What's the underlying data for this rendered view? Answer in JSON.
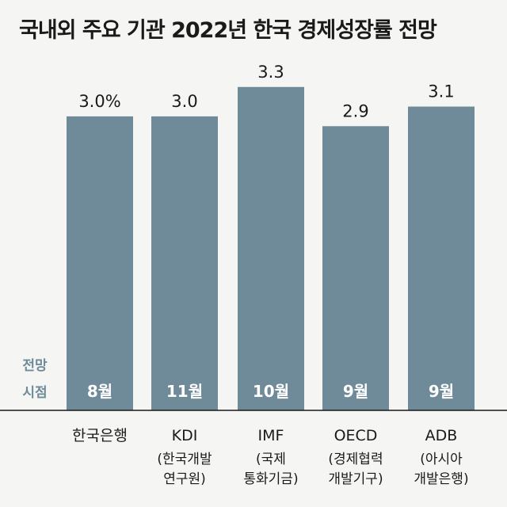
{
  "title": "국내외 주요 기관 2022년 한국 경제성장률 전망",
  "time_caption": [
    "전망",
    "시점"
  ],
  "chart_data": {
    "type": "bar",
    "title": "국내외 주요 기관 2022년 한국 경제성장률 전망",
    "categories": [
      {
        "name": "한국은행",
        "sub": []
      },
      {
        "name": "KDI",
        "sub": [
          "(한국개발",
          "연구원)"
        ]
      },
      {
        "name": "IMF",
        "sub": [
          "(국제",
          "통화기금)"
        ]
      },
      {
        "name": "OECD",
        "sub": [
          "(경제협력",
          "개발기구)"
        ]
      },
      {
        "name": "ADB",
        "sub": [
          "(아시아",
          "개발은행)"
        ]
      }
    ],
    "values": [
      3.0,
      3.0,
      3.3,
      2.9,
      3.1
    ],
    "value_labels": [
      "3.0%",
      "3.0",
      "3.3",
      "2.9",
      "3.1"
    ],
    "forecast_month": [
      "8월",
      "11월",
      "10월",
      "9월",
      "9월"
    ],
    "ylim": [
      0,
      3.6
    ],
    "bar_color": "#6f8a99",
    "grid": false
  }
}
